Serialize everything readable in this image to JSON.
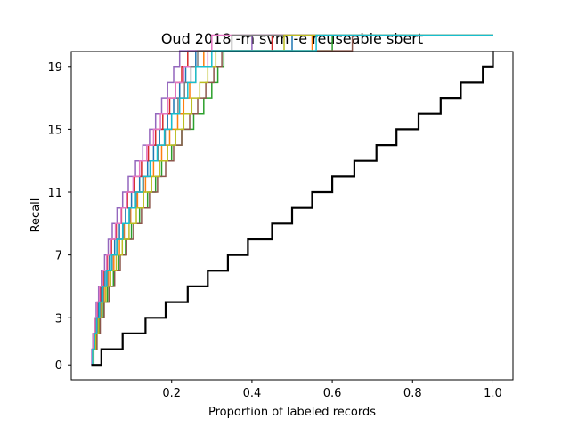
{
  "chart_data": {
    "type": "line",
    "step": true,
    "title": "Oud 2018 -m svm -e reuseable sbert",
    "xlabel": "Proportion of labeled records",
    "ylabel": "Recall",
    "xlim": [
      -0.05,
      1.05
    ],
    "ylim": [
      -0.95,
      19.95
    ],
    "xticks": [
      {
        "value": 0.2,
        "label": "0.2"
      },
      {
        "value": 0.4,
        "label": "0.4"
      },
      {
        "value": 0.6,
        "label": "0.6"
      },
      {
        "value": 0.8,
        "label": "0.8"
      },
      {
        "value": 1.0,
        "label": "1.0"
      }
    ],
    "yticks": [
      {
        "value": 0,
        "label": "0"
      },
      {
        "value": 3,
        "label": "3"
      },
      {
        "value": 7,
        "label": "7"
      },
      {
        "value": 11,
        "label": "11"
      },
      {
        "value": 15,
        "label": "15"
      },
      {
        "value": 19,
        "label": "19"
      }
    ],
    "grid": false,
    "total_relevant": 19,
    "reference": {
      "color": "#000000",
      "x": [
        0.0,
        0.025,
        0.078,
        0.135,
        0.185,
        0.24,
        0.29,
        0.34,
        0.39,
        0.45,
        0.5,
        0.55,
        0.6,
        0.655,
        0.71,
        0.76,
        0.815,
        0.87,
        0.92,
        0.975,
        1.0
      ]
    },
    "series": [
      {
        "color": "#1f77b4",
        "x": [
          0.0,
          0.003,
          0.008,
          0.012,
          0.018,
          0.025,
          0.034,
          0.045,
          0.058,
          0.07,
          0.085,
          0.1,
          0.12,
          0.14,
          0.155,
          0.17,
          0.19,
          0.205,
          0.22,
          0.235,
          0.26,
          0.5
        ]
      },
      {
        "color": "#ff7f0e",
        "x": [
          0.0,
          0.004,
          0.01,
          0.016,
          0.024,
          0.032,
          0.043,
          0.056,
          0.07,
          0.082,
          0.098,
          0.115,
          0.135,
          0.155,
          0.175,
          0.195,
          0.215,
          0.23,
          0.245,
          0.26,
          0.28,
          0.55
        ]
      },
      {
        "color": "#2ca02c",
        "x": [
          0.0,
          0.005,
          0.012,
          0.02,
          0.03,
          0.04,
          0.055,
          0.068,
          0.085,
          0.1,
          0.12,
          0.14,
          0.16,
          0.175,
          0.2,
          0.225,
          0.255,
          0.28,
          0.3,
          0.315,
          0.33,
          0.6
        ]
      },
      {
        "color": "#d62728",
        "x": [
          0.0,
          0.002,
          0.006,
          0.01,
          0.015,
          0.022,
          0.03,
          0.04,
          0.05,
          0.062,
          0.075,
          0.09,
          0.108,
          0.125,
          0.142,
          0.16,
          0.178,
          0.195,
          0.21,
          0.225,
          0.24,
          0.45
        ]
      },
      {
        "color": "#9467bd",
        "x": [
          0.0,
          0.001,
          0.004,
          0.008,
          0.012,
          0.018,
          0.025,
          0.033,
          0.042,
          0.052,
          0.064,
          0.078,
          0.092,
          0.11,
          0.128,
          0.145,
          0.16,
          0.175,
          0.19,
          0.205,
          0.22,
          0.4
        ]
      },
      {
        "color": "#8c564b",
        "x": [
          0.0,
          0.006,
          0.014,
          0.022,
          0.032,
          0.044,
          0.058,
          0.072,
          0.088,
          0.105,
          0.125,
          0.145,
          0.165,
          0.185,
          0.205,
          0.225,
          0.245,
          0.265,
          0.285,
          0.305,
          0.325,
          0.65
        ]
      },
      {
        "color": "#e377c2",
        "x": [
          0.0,
          0.002,
          0.005,
          0.009,
          0.014,
          0.02,
          0.028,
          0.038,
          0.048,
          0.06,
          0.074,
          0.088,
          0.104,
          0.12,
          0.138,
          0.155,
          0.172,
          0.19,
          0.21,
          0.23,
          0.29,
          0.3
        ]
      },
      {
        "color": "#7f7f7f",
        "x": [
          0.0,
          0.004,
          0.01,
          0.015,
          0.022,
          0.03,
          0.04,
          0.052,
          0.065,
          0.08,
          0.096,
          0.112,
          0.13,
          0.148,
          0.166,
          0.184,
          0.2,
          0.216,
          0.232,
          0.248,
          0.265,
          0.35
        ]
      },
      {
        "color": "#bcbd22",
        "x": [
          0.0,
          0.005,
          0.011,
          0.018,
          0.026,
          0.036,
          0.048,
          0.062,
          0.077,
          0.094,
          0.112,
          0.13,
          0.15,
          0.17,
          0.19,
          0.21,
          0.23,
          0.25,
          0.27,
          0.29,
          0.31,
          0.48
        ]
      },
      {
        "color": "#17becf",
        "x": [
          0.0,
          0.003,
          0.008,
          0.013,
          0.02,
          0.028,
          0.038,
          0.05,
          0.063,
          0.078,
          0.094,
          0.11,
          0.128,
          0.146,
          0.164,
          0.182,
          0.2,
          0.22,
          0.24,
          0.26,
          0.3,
          0.56
        ]
      }
    ]
  }
}
